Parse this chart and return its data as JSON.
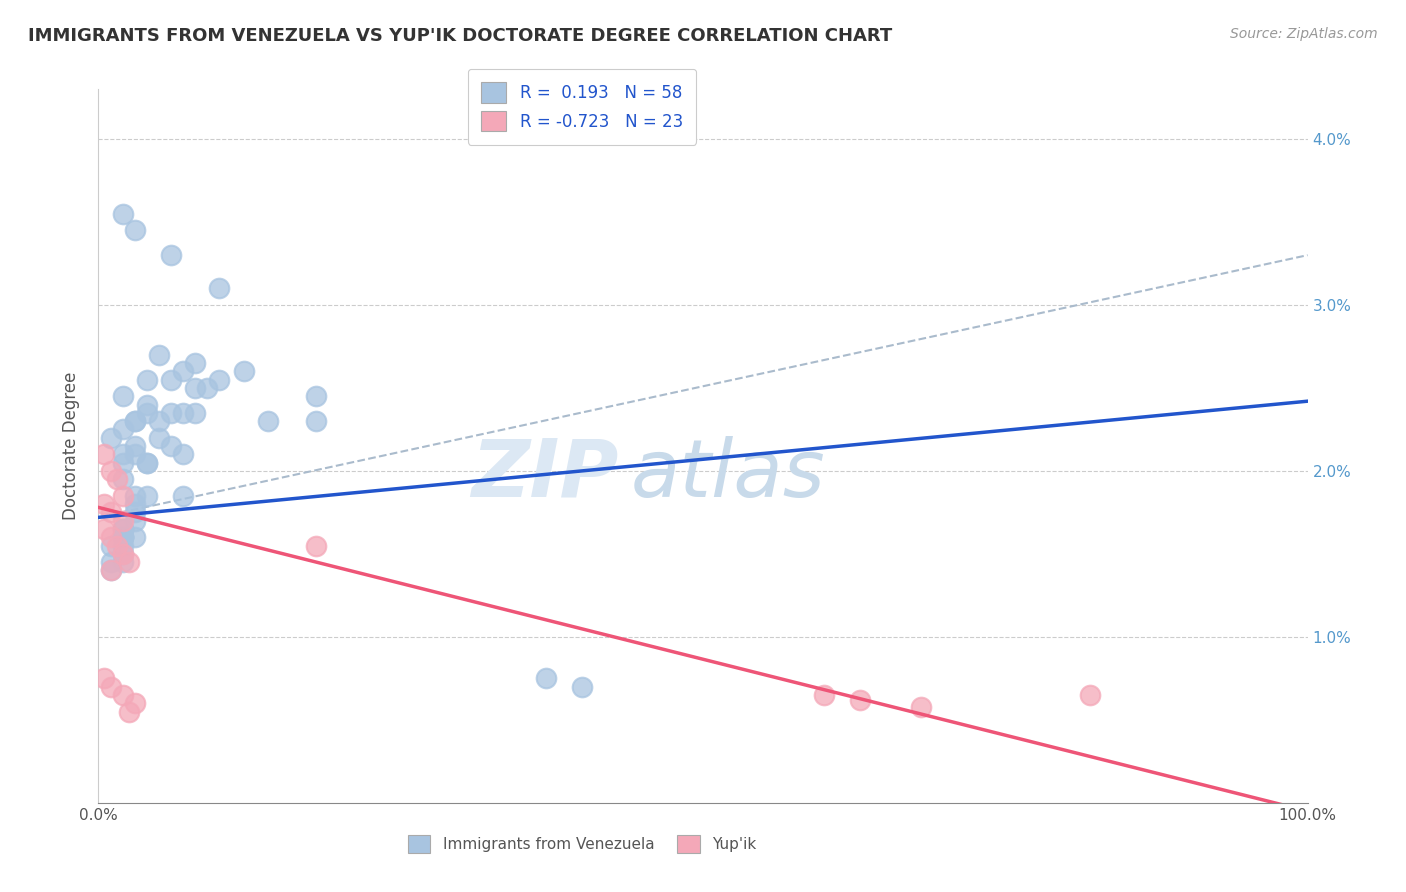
{
  "title": "IMMIGRANTS FROM VENEZUELA VS YUP'IK DOCTORATE DEGREE CORRELATION CHART",
  "source": "Source: ZipAtlas.com",
  "ylabel": "Doctorate Degree",
  "xlim": [
    0,
    100
  ],
  "ylim": [
    0,
    4.3
  ],
  "y_tick_values": [
    1.0,
    2.0,
    3.0,
    4.0
  ],
  "y_tick_labels": [
    "1.0%",
    "2.0%",
    "3.0%",
    "4.0%"
  ],
  "x_tick_labels": [
    "0.0%",
    "100.0%"
  ],
  "legend_r1": "R =  0.193   N = 58",
  "legend_r2": "R = -0.723   N = 23",
  "blue_color": "#a8c4e0",
  "pink_color": "#f4a8b8",
  "line_blue": "#2255cc",
  "line_pink": "#ee5577",
  "line_gray_dashed": "#aabbcc",
  "blue_line_x0": 0,
  "blue_line_x1": 100,
  "blue_line_y0": 1.72,
  "blue_line_y1": 2.42,
  "pink_line_x0": 0,
  "pink_line_x1": 100,
  "pink_line_y0": 1.78,
  "pink_line_y1": -0.05,
  "gray_line_x0": 0,
  "gray_line_x1": 100,
  "gray_line_y0": 1.72,
  "gray_line_y1": 3.3,
  "blue_x": [
    2,
    6,
    10,
    3,
    8,
    4,
    5,
    7,
    2,
    3,
    4,
    6,
    3,
    2,
    1,
    4,
    5,
    3,
    2,
    8,
    4,
    6,
    2,
    3,
    5,
    10,
    4,
    8,
    12,
    7,
    9,
    2,
    6,
    4,
    7,
    3,
    14,
    3,
    2,
    2,
    1,
    2,
    18,
    2,
    2,
    18,
    2,
    1,
    1,
    2,
    3,
    7,
    3,
    3,
    2,
    2,
    37,
    40
  ],
  "blue_y": [
    3.55,
    3.3,
    3.1,
    3.45,
    2.65,
    2.55,
    2.7,
    2.6,
    2.45,
    2.3,
    2.35,
    2.55,
    2.3,
    2.25,
    2.2,
    2.4,
    2.3,
    2.15,
    2.05,
    2.5,
    2.05,
    2.35,
    2.1,
    2.1,
    2.2,
    2.55,
    2.05,
    2.35,
    2.6,
    2.35,
    2.5,
    1.95,
    2.15,
    1.85,
    2.1,
    1.85,
    2.3,
    1.8,
    1.6,
    1.65,
    1.55,
    1.6,
    2.45,
    1.6,
    1.5,
    2.3,
    1.55,
    1.45,
    1.4,
    1.45,
    1.6,
    1.85,
    1.75,
    1.7,
    1.65,
    1.6,
    0.75,
    0.7
  ],
  "pink_x": [
    0.5,
    1,
    1.5,
    2,
    0.5,
    1,
    2,
    0.5,
    1,
    1.5,
    2,
    2.5,
    1,
    0.5,
    1,
    2,
    3,
    2.5,
    18,
    60,
    63,
    68,
    82
  ],
  "pink_y": [
    2.1,
    2.0,
    1.95,
    1.85,
    1.8,
    1.75,
    1.7,
    1.65,
    1.6,
    1.55,
    1.5,
    1.45,
    1.4,
    0.75,
    0.7,
    0.65,
    0.6,
    0.55,
    1.55,
    0.65,
    0.62,
    0.58,
    0.65
  ]
}
